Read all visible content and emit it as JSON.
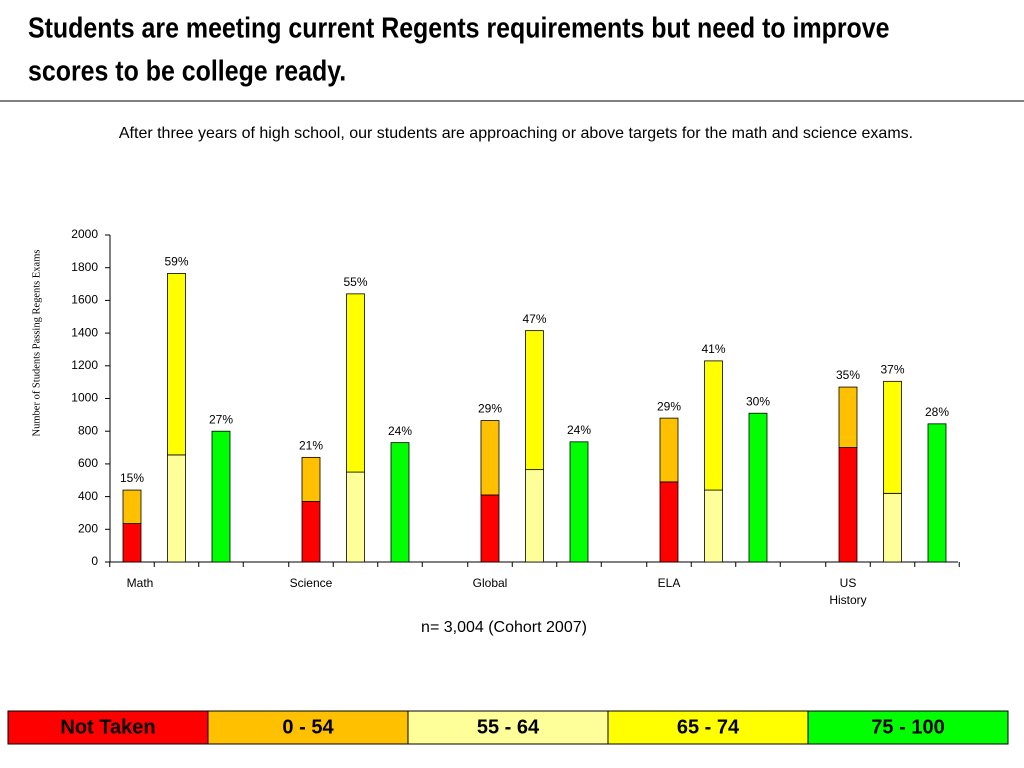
{
  "title": "Students are meeting current Regents requirements but need to improve scores to be college ready.",
  "chart_data": {
    "type": "stacked_bar",
    "subtitle": "After three years of high school, our students are approaching or above targets for the math and science exams.",
    "ylabel": "Number of Students Passing Regents Exams",
    "note": "n= 3,004 (Cohort 2007)",
    "categories": [
      "Math",
      "Science",
      "Global",
      "ELA",
      "US History"
    ],
    "ylim": [
      0,
      2000
    ],
    "yticks": [
      0,
      200,
      400,
      600,
      800,
      1000,
      1200,
      1400,
      1600,
      1800,
      2000
    ],
    "bars": [
      {
        "labels": [
          "15%",
          "21%",
          "29%",
          "29%",
          "35%"
        ],
        "series": [
          {
            "name": "Not Taken",
            "color": "#ff0000",
            "values": [
              235,
              370,
              410,
              490,
              700
            ]
          },
          {
            "name": "0 - 54",
            "color": "#ffc000",
            "values": [
              205,
              270,
              455,
              390,
              370
            ]
          }
        ]
      },
      {
        "labels": [
          "59%",
          "55%",
          "47%",
          "41%",
          "37%"
        ],
        "series": [
          {
            "name": "55 - 64",
            "color": "#ffff99",
            "values": [
              655,
              550,
              565,
              440,
              420
            ]
          },
          {
            "name": "65 - 74",
            "color": "#ffff00",
            "values": [
              1110,
              1090,
              850,
              790,
              685
            ]
          }
        ]
      },
      {
        "labels": [
          "27%",
          "24%",
          "24%",
          "30%",
          "28%"
        ],
        "series": [
          {
            "name": "75 - 100",
            "color": "#00ff00",
            "values": [
              800,
              730,
              735,
              910,
              845
            ]
          }
        ]
      }
    ]
  }
}
